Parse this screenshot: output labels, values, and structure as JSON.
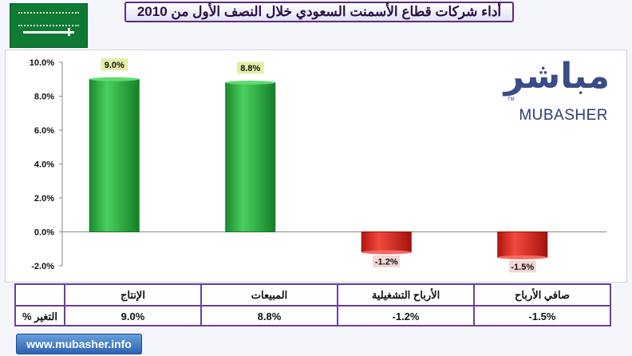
{
  "title": "أداء شركات قطاع الأسمنت السعودي خلال النصف الأول من 2010",
  "logo": {
    "arabic": "مباشر",
    "english": "MUBASHER",
    "tm": "TM"
  },
  "footer": {
    "url": "www.mubasher.info"
  },
  "colors": {
    "positive": "#22a83a",
    "negative": "#e0231c",
    "label_positive_bg": "#e4eea8",
    "label_negative_bg": "#f2d6d6",
    "frame": "#6b3f9a"
  },
  "table": {
    "row_label": "التغير %",
    "headers": [
      "الإنتاج",
      "المبيعات",
      "الأرباح التشغيلية",
      "صافي الأرباح"
    ],
    "values": [
      "9.0%",
      "8.8%",
      "-1.2%",
      "-1.5%"
    ]
  },
  "chart_data": {
    "type": "bar",
    "categories": [
      "الإنتاج",
      "المبيعات",
      "الأرباح التشغيلية",
      "صافي الأرباح"
    ],
    "values": [
      9.0,
      8.8,
      -1.2,
      -1.5
    ],
    "data_labels": [
      "9.0%",
      "8.8%",
      "-1.2%",
      "-1.5%"
    ],
    "ylim": [
      -2.0,
      10.0
    ],
    "yticks": [
      -2.0,
      0.0,
      2.0,
      4.0,
      6.0,
      8.0,
      10.0
    ],
    "ytick_labels": [
      "-2.0%",
      "0.0%",
      "2.0%",
      "4.0%",
      "6.0%",
      "8.0%",
      "10.0%"
    ],
    "grid": false,
    "legend": "none"
  }
}
